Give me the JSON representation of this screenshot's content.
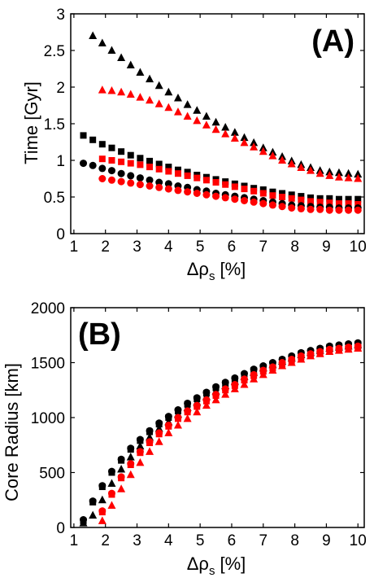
{
  "chart_data": [
    {
      "type": "scatter",
      "panel_label": "(A)",
      "xlabel_main": "Δρ",
      "xlabel_sub": "s",
      "xlabel_unit": "[%]",
      "ylabel": "Time [Gyr]",
      "xlim": [
        0.9,
        10.2
      ],
      "ylim": [
        0,
        3
      ],
      "xticks": [
        "1",
        "2",
        "3",
        "4",
        "5",
        "6",
        "7",
        "8",
        "9",
        "10"
      ],
      "yticks": [
        "0",
        "0.5",
        "1",
        "1.5",
        "2",
        "2.5",
        "3"
      ],
      "grid": false,
      "legend": "none",
      "x": [
        1.3,
        1.6,
        1.9,
        2.2,
        2.5,
        2.8,
        3.1,
        3.4,
        3.7,
        4.0,
        4.3,
        4.6,
        4.9,
        5.2,
        5.5,
        5.8,
        6.1,
        6.4,
        6.7,
        7.0,
        7.3,
        7.6,
        7.9,
        8.2,
        8.5,
        8.8,
        9.1,
        9.4,
        9.7,
        10.0
      ],
      "series": [
        {
          "marker": "triangle",
          "color": "#000000",
          "values": [
            null,
            2.7,
            2.6,
            2.5,
            2.4,
            2.3,
            2.2,
            2.11,
            2.02,
            1.93,
            1.85,
            1.76,
            1.68,
            1.6,
            1.52,
            1.45,
            1.38,
            1.31,
            1.24,
            1.17,
            1.11,
            1.05,
            0.99,
            0.94,
            0.9,
            0.86,
            0.84,
            0.83,
            0.82,
            0.81
          ]
        },
        {
          "marker": "triangle",
          "color": "#ff0000",
          "values": [
            null,
            null,
            1.96,
            1.95,
            1.93,
            1.9,
            1.86,
            1.82,
            1.77,
            1.72,
            1.66,
            1.6,
            1.54,
            1.48,
            1.42,
            1.36,
            1.3,
            1.24,
            1.18,
            1.12,
            1.06,
            1.0,
            0.95,
            0.9,
            0.86,
            0.82,
            0.79,
            0.77,
            0.76,
            0.75
          ]
        },
        {
          "marker": "square",
          "color": "#000000",
          "values": [
            1.34,
            1.28,
            1.22,
            1.17,
            1.12,
            1.07,
            1.03,
            0.99,
            0.95,
            0.91,
            0.87,
            0.84,
            0.8,
            0.77,
            0.74,
            0.71,
            0.68,
            0.65,
            0.62,
            0.6,
            0.57,
            0.55,
            0.53,
            0.51,
            0.49,
            0.48,
            0.48,
            0.47,
            0.47,
            0.47
          ]
        },
        {
          "marker": "square",
          "color": "#ff0000",
          "values": [
            null,
            null,
            1.02,
            1.0,
            0.98,
            0.96,
            0.94,
            0.91,
            0.88,
            0.85,
            0.82,
            0.79,
            0.76,
            0.73,
            0.7,
            0.67,
            0.64,
            0.61,
            0.58,
            0.55,
            0.52,
            0.5,
            0.48,
            0.46,
            0.44,
            0.43,
            0.42,
            0.41,
            0.41,
            0.4
          ]
        },
        {
          "marker": "circle",
          "color": "#000000",
          "values": [
            0.96,
            0.93,
            0.89,
            0.86,
            0.82,
            0.79,
            0.76,
            0.73,
            0.7,
            0.68,
            0.65,
            0.63,
            0.6,
            0.58,
            0.55,
            0.53,
            0.51,
            0.49,
            0.47,
            0.45,
            0.43,
            0.41,
            0.39,
            0.38,
            0.37,
            0.36,
            0.36,
            0.35,
            0.35,
            0.35
          ]
        },
        {
          "marker": "circle",
          "color": "#ff0000",
          "values": [
            null,
            null,
            0.75,
            0.73,
            0.71,
            0.69,
            0.67,
            0.65,
            0.63,
            0.61,
            0.59,
            0.57,
            0.55,
            0.53,
            0.51,
            0.49,
            0.47,
            0.45,
            0.43,
            0.41,
            0.39,
            0.37,
            0.35,
            0.34,
            0.33,
            0.33,
            0.32,
            0.32,
            0.32,
            0.32
          ]
        }
      ]
    },
    {
      "type": "scatter",
      "panel_label": "(B)",
      "xlabel_main": "Δρ",
      "xlabel_sub": "s",
      "xlabel_unit": "[%]",
      "ylabel": "Core Radius [km]",
      "xlim": [
        0.9,
        10.2
      ],
      "ylim": [
        0,
        2000
      ],
      "xticks": [
        "1",
        "2",
        "3",
        "4",
        "5",
        "6",
        "7",
        "8",
        "9",
        "10"
      ],
      "yticks": [
        "0",
        "500",
        "1000",
        "1500",
        "2000"
      ],
      "grid": false,
      "legend": "none",
      "x": [
        1.3,
        1.6,
        1.9,
        2.2,
        2.5,
        2.8,
        3.1,
        3.4,
        3.7,
        4.0,
        4.3,
        4.6,
        4.9,
        5.2,
        5.5,
        5.8,
        6.1,
        6.4,
        6.7,
        7.0,
        7.3,
        7.6,
        7.9,
        8.2,
        8.5,
        8.8,
        9.1,
        9.4,
        9.7,
        10.0
      ],
      "series": [
        {
          "marker": "circle",
          "color": "#000000",
          "values": [
            70,
            240,
            380,
            510,
            620,
            720,
            800,
            880,
            950,
            1010,
            1070,
            1130,
            1180,
            1230,
            1280,
            1320,
            1360,
            1400,
            1440,
            1470,
            1500,
            1530,
            1560,
            1590,
            1610,
            1630,
            1650,
            1660,
            1670,
            1680
          ]
        },
        {
          "marker": "square",
          "color": "#000000",
          "values": [
            60,
            230,
            370,
            500,
            610,
            710,
            790,
            870,
            940,
            1000,
            1060,
            1120,
            1170,
            1220,
            1270,
            1310,
            1350,
            1390,
            1430,
            1460,
            1490,
            1520,
            1550,
            1580,
            1600,
            1620,
            1640,
            1650,
            1660,
            1670
          ]
        },
        {
          "marker": "triangle",
          "color": "#000000",
          "values": [
            40,
            110,
            250,
            400,
            530,
            640,
            740,
            820,
            900,
            960,
            1030,
            1090,
            1140,
            1190,
            1240,
            1290,
            1330,
            1370,
            1410,
            1450,
            1480,
            1510,
            1540,
            1570,
            1590,
            1610,
            1630,
            1640,
            1650,
            1660
          ]
        },
        {
          "marker": "circle",
          "color": "#ff0000",
          "values": [
            null,
            null,
            150,
            310,
            460,
            580,
            690,
            780,
            860,
            930,
            1000,
            1060,
            1110,
            1160,
            1210,
            1260,
            1300,
            1350,
            1390,
            1430,
            1460,
            1500,
            1530,
            1560,
            1580,
            1600,
            1620,
            1630,
            1640,
            1650
          ]
        },
        {
          "marker": "square",
          "color": "#ff0000",
          "values": [
            null,
            null,
            140,
            300,
            450,
            570,
            680,
            770,
            850,
            920,
            990,
            1050,
            1100,
            1150,
            1200,
            1250,
            1290,
            1340,
            1380,
            1420,
            1450,
            1490,
            1520,
            1550,
            1570,
            1590,
            1610,
            1620,
            1630,
            1640
          ]
        },
        {
          "marker": "triangle",
          "color": "#ff0000",
          "values": [
            null,
            null,
            60,
            200,
            350,
            480,
            590,
            690,
            780,
            860,
            930,
            990,
            1050,
            1110,
            1160,
            1210,
            1260,
            1300,
            1350,
            1390,
            1430,
            1470,
            1500,
            1530,
            1560,
            1580,
            1600,
            1610,
            1620,
            1630
          ]
        }
      ]
    }
  ]
}
